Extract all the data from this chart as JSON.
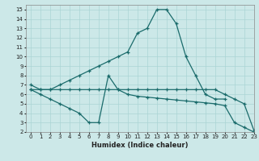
{
  "title": "",
  "xlabel": "Humidex (Indice chaleur)",
  "bg_color": "#cce8e8",
  "line_color": "#1a6b6b",
  "grid_color": "#aad4d4",
  "xlim": [
    -0.5,
    23
  ],
  "ylim": [
    2,
    15.5
  ],
  "xticks": [
    0,
    1,
    2,
    3,
    4,
    5,
    6,
    7,
    8,
    9,
    10,
    11,
    12,
    13,
    14,
    15,
    16,
    17,
    18,
    19,
    20,
    21,
    22,
    23
  ],
  "yticks": [
    2,
    3,
    4,
    5,
    6,
    7,
    8,
    9,
    10,
    11,
    12,
    13,
    14,
    15
  ],
  "lines": [
    {
      "x": [
        0,
        1,
        2,
        3,
        4,
        5,
        6,
        7,
        8,
        9,
        10,
        11,
        12,
        13,
        14,
        15,
        16,
        17,
        18,
        19,
        20
      ],
      "y": [
        7,
        6.5,
        6.5,
        7,
        7.5,
        8,
        8.5,
        9,
        9.5,
        10,
        10.5,
        12.5,
        13,
        15,
        15,
        13.5,
        10,
        8,
        6,
        5.5,
        5.5
      ]
    },
    {
      "x": [
        0,
        1,
        2,
        3,
        4,
        5,
        6,
        7,
        8,
        9,
        10,
        11,
        12,
        13,
        14,
        15,
        16,
        17,
        18,
        19,
        20,
        21,
        22,
        23
      ],
      "y": [
        6.5,
        6.5,
        6.5,
        6.5,
        6.5,
        6.5,
        6.5,
        6.5,
        6.5,
        6.5,
        6.5,
        6.5,
        6.5,
        6.5,
        6.5,
        6.5,
        6.5,
        6.5,
        6.5,
        6.5,
        6,
        5.5,
        5,
        2.2
      ]
    },
    {
      "x": [
        0,
        1,
        2,
        3,
        4,
        5,
        6,
        7,
        8,
        9,
        10,
        11,
        12,
        13,
        14,
        15,
        16,
        17,
        18,
        19,
        20,
        21,
        22,
        23
      ],
      "y": [
        6.5,
        6,
        5.5,
        5,
        4.5,
        4,
        3,
        3,
        8,
        6.5,
        6,
        5.8,
        5.7,
        5.6,
        5.5,
        5.4,
        5.3,
        5.2,
        5.1,
        5.0,
        4.8,
        3,
        2.5,
        2.0
      ]
    }
  ]
}
